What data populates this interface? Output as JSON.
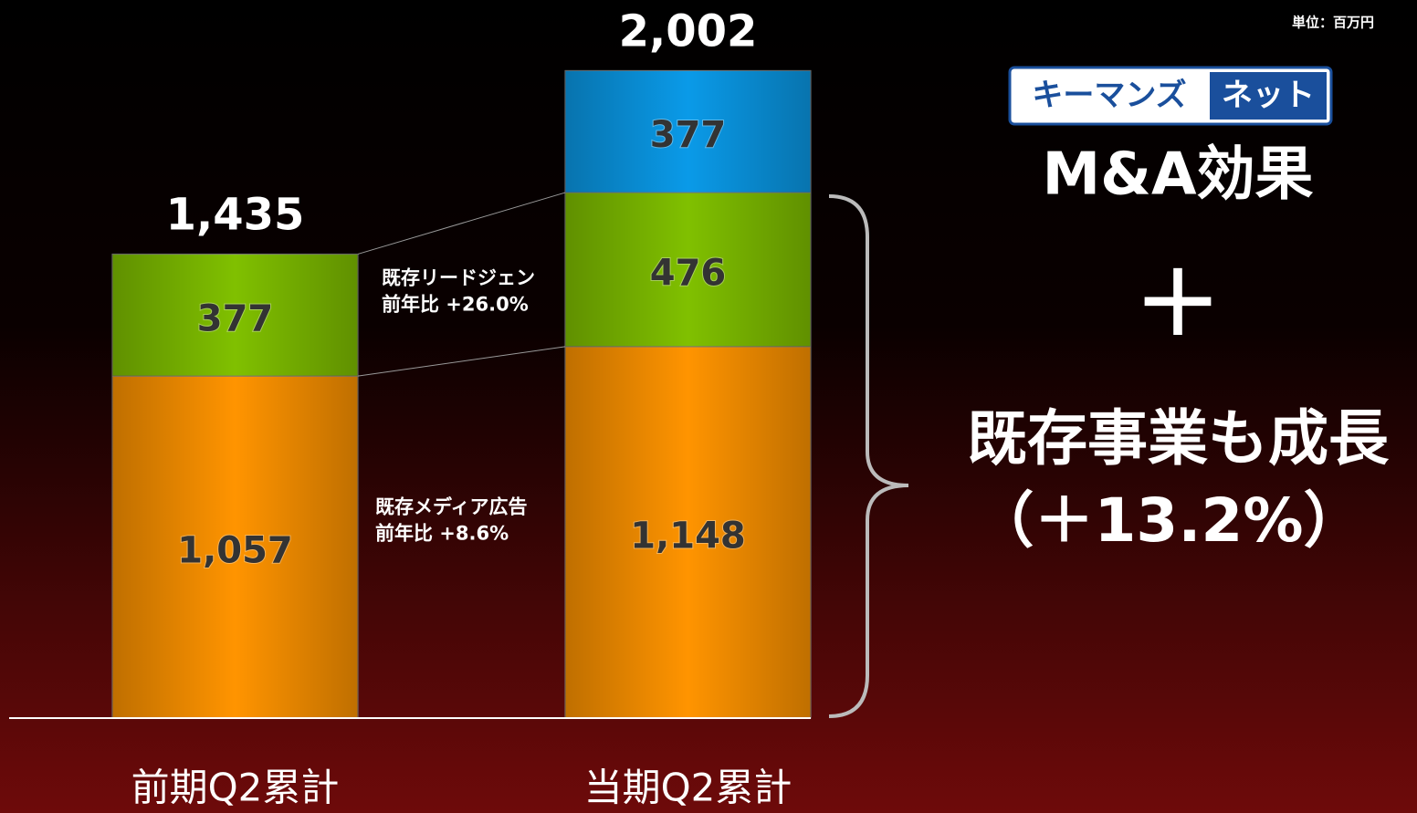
{
  "chart_data": {
    "type": "stacked-bar",
    "unit": "単位：百万円",
    "categories": [
      "前期Q2累計",
      "当期Q2累計"
    ],
    "ylim": [
      0,
      2002
    ],
    "series": [
      {
        "name": "既存メディア広告",
        "growth": "前年比 +8.6%",
        "color": "#ff9400",
        "values": [
          1057,
          1148
        ],
        "value_labels": [
          "1,057",
          "1,148"
        ]
      },
      {
        "name": "既存リードジェン",
        "growth": "前年比 +26.0%",
        "color": "#80c000",
        "values": [
          377,
          476
        ]
      },
      {
        "color": "#0a9ae8",
        "values": [
          null,
          377
        ]
      }
    ],
    "totals": [
      1435,
      2002
    ],
    "total_labels": [
      "1,435",
      "2,002"
    ],
    "logo": [
      "キーマンズ",
      "ネット"
    ],
    "headlines": [
      "M&A効果",
      "＋",
      "既存事業も成長",
      "（＋13.2%）"
    ]
  }
}
